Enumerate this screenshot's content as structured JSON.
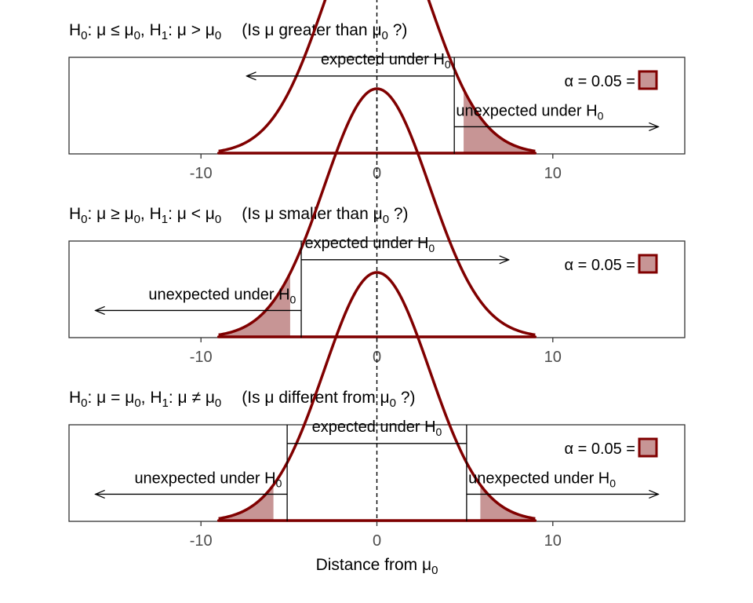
{
  "colors": {
    "curve": "#800000",
    "tail_fill": "#c79595",
    "panel_border": "#333333",
    "text": "#000000",
    "tick_label": "#4d4d4d"
  },
  "chart_data": [
    {
      "type": "line",
      "test": "right",
      "title": {
        "h0_label": "H",
        "h0_sub": "0",
        "h0_relation": ": μ ≤ μ",
        "h0_mu_sub": "0",
        "sep": ",  ",
        "h1_label": "H",
        "h1_sub": "1",
        "h1_relation": ": μ > μ",
        "h1_mu_sub": "0",
        "question_pre": "(Is μ greater than μ",
        "question_sub": "0",
        "question_post": " ?)"
      },
      "xlim": [
        -17.5,
        17.5
      ],
      "ylim": [
        0,
        0.0516
      ],
      "xticks": [
        -10,
        0,
        10
      ],
      "xtick_labels": [
        "-10",
        "0",
        "10"
      ],
      "distribution": {
        "kind": "normal",
        "mean": 0,
        "sd": 3,
        "xmin": -9,
        "xmax": 9
      },
      "critical_values": [
        4.93
      ],
      "alpha": {
        "text": "α = 0.05 ="
      },
      "annotations": [
        {
          "id": "expected",
          "text": "expected under H",
          "sub": "0",
          "anchor": "end",
          "label_x": 4.2,
          "label_y": 0.0478,
          "arrow_from": 4.4,
          "arrow_to": -7.4,
          "arrow_y": 0.0416
        },
        {
          "id": "unexpected",
          "text": "unexpected under H",
          "sub": "0",
          "anchor": "start",
          "label_x": 4.5,
          "label_y": 0.0203,
          "arrow_from": 4.4,
          "arrow_to": 16,
          "arrow_y": 0.0145
        }
      ],
      "xlabel": ""
    },
    {
      "type": "line",
      "test": "left",
      "title": {
        "h0_label": "H",
        "h0_sub": "0",
        "h0_relation": ": μ ≥ μ",
        "h0_mu_sub": "0",
        "sep": ",  ",
        "h1_label": "H",
        "h1_sub": "1",
        "h1_relation": ": μ < μ",
        "h1_mu_sub": "0",
        "question_pre": "(Is μ smaller than μ",
        "question_sub": "0",
        "question_post": " ?)"
      },
      "xlim": [
        -17.5,
        17.5
      ],
      "ylim": [
        0,
        0.0516
      ],
      "xticks": [
        -10,
        0,
        10
      ],
      "xtick_labels": [
        "-10",
        "0",
        "10"
      ],
      "distribution": {
        "kind": "normal",
        "mean": 0,
        "sd": 3,
        "xmin": -9,
        "xmax": 9
      },
      "critical_values": [
        -4.93
      ],
      "alpha": {
        "text": "α = 0.05 ="
      },
      "annotations": [
        {
          "id": "expected",
          "text": "expected under H",
          "sub": "0",
          "anchor": "start",
          "label_x": -4.1,
          "label_y": 0.0478,
          "arrow_from": -4.3,
          "arrow_to": 7.5,
          "arrow_y": 0.0416
        },
        {
          "id": "unexpected",
          "text": "unexpected under H",
          "sub": "0",
          "anchor": "end",
          "label_x": -4.6,
          "label_y": 0.0203,
          "arrow_from": -4.3,
          "arrow_to": -16,
          "arrow_y": 0.0145
        }
      ],
      "xlabel": ""
    },
    {
      "type": "line",
      "test": "two-sided",
      "title": {
        "h0_label": "H",
        "h0_sub": "0",
        "h0_relation": ": μ = μ",
        "h0_mu_sub": "0",
        "sep": ",  ",
        "h1_label": "H",
        "h1_sub": "1",
        "h1_relation": ": μ ≠ μ",
        "h1_mu_sub": "0",
        "question_pre": "(Is μ different from μ",
        "question_sub": "0",
        "question_post": " ?)"
      },
      "xlim": [
        -17.5,
        17.5
      ],
      "ylim": [
        0,
        0.0516
      ],
      "xticks": [
        -10,
        0,
        10
      ],
      "xtick_labels": [
        "-10",
        "0",
        "10"
      ],
      "distribution": {
        "kind": "normal",
        "mean": 0,
        "sd": 3,
        "xmin": -9,
        "xmax": 9
      },
      "critical_values": [
        -5.88,
        5.88
      ],
      "alpha": {
        "text": "α = 0.05 ="
      },
      "annotations": [
        {
          "id": "expected",
          "text": "expected under H",
          "sub": "0",
          "anchor": "middle",
          "label_x": 0,
          "label_y": 0.0478,
          "bar_from": -5.1,
          "bar_to": 5.1,
          "bar_y": 0.0416
        },
        {
          "id": "unexpected-left",
          "text": "unexpected under H",
          "sub": "0",
          "anchor": "end",
          "label_x": -5.4,
          "label_y": 0.0203,
          "arrow_from": -5.1,
          "arrow_to": -16,
          "arrow_y": 0.0145
        },
        {
          "id": "unexpected-right",
          "text": "unexpected under H",
          "sub": "0",
          "anchor": "start",
          "label_x": 5.2,
          "label_y": 0.0203,
          "arrow_from": 5.1,
          "arrow_to": 16,
          "arrow_y": 0.0145
        }
      ],
      "xlabel": {
        "text": "Distance from μ",
        "sub": "0"
      }
    }
  ]
}
